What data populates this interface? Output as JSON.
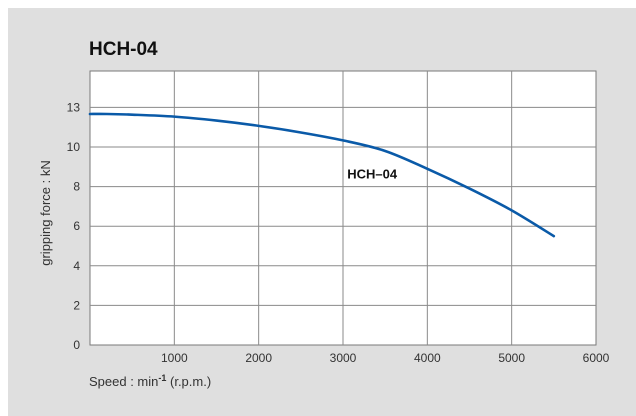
{
  "chart_data": {
    "type": "line",
    "title": "HCH-04",
    "xlabel": "Speed : min",
    "xlabel_sup": "-1",
    "xlabel_suffix": " (r.p.m.)",
    "ylabel": "gripping force : kN",
    "xlim": [
      0,
      6000
    ],
    "ylim": [
      0,
      13
    ],
    "x_ticks": [
      "0",
      "1000",
      "2000",
      "3000",
      "4000",
      "5000",
      "6000"
    ],
    "y_ticks": [
      "0",
      "2",
      "4",
      "6",
      "8",
      "10",
      "13"
    ],
    "grid": true,
    "series": [
      {
        "name": "HCH–04",
        "color": "#0a5aa8",
        "x": [
          0,
          200,
          500,
          1000,
          1500,
          2000,
          2500,
          3000,
          3500,
          4000,
          4500,
          5000,
          5500
        ],
        "y": [
          12.5,
          12.5,
          12.45,
          12.3,
          12.0,
          11.6,
          11.1,
          10.5,
          9.8,
          8.9,
          7.9,
          6.8,
          5.5
        ]
      }
    ],
    "annotations": [
      {
        "text": "HCH–04",
        "x": 3050,
        "y": 8.4
      }
    ]
  }
}
